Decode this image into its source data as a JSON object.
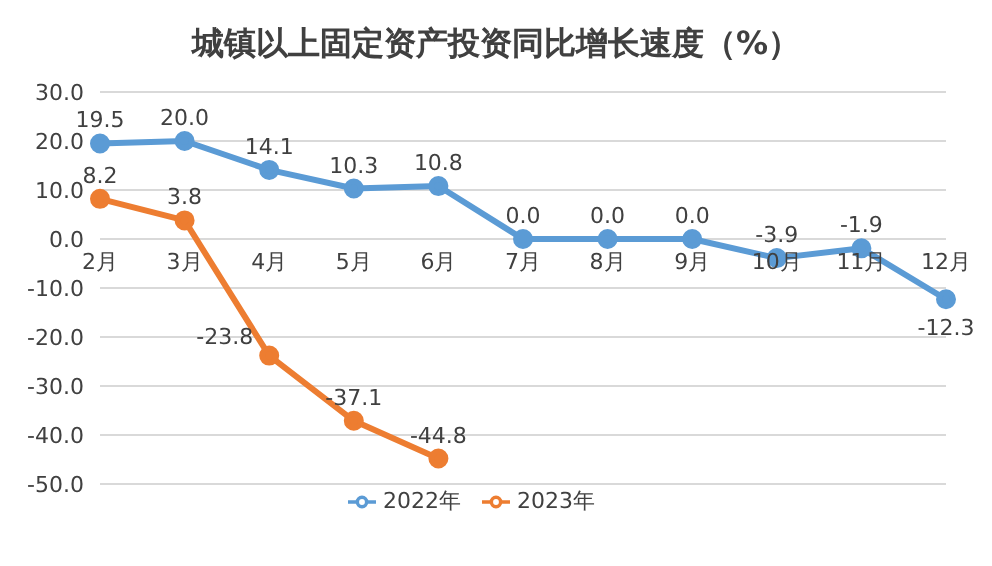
{
  "chart_data": {
    "type": "line",
    "title": "城镇以上固定资产投资同比增长速度（%）",
    "categories": [
      "2月",
      "3月",
      "4月",
      "5月",
      "6月",
      "7月",
      "8月",
      "9月",
      "10月",
      "11月",
      "12月"
    ],
    "series": [
      {
        "name": "2022年",
        "color": "#5b9bd5",
        "values": [
          19.5,
          20.0,
          14.1,
          10.3,
          10.8,
          0.0,
          0.0,
          0.0,
          -3.9,
          -1.9,
          -12.3
        ],
        "value_labels": [
          "19.5",
          "20.0",
          "14.1",
          "10.3",
          "10.8",
          "0.0",
          "0.0",
          "0.0",
          "-3.9",
          "-1.9",
          "-12.3"
        ]
      },
      {
        "name": "2023年",
        "color": "#ed7d31",
        "values": [
          8.2,
          3.8,
          -23.8,
          -37.1,
          -44.8,
          null,
          null,
          null,
          null,
          null,
          null
        ],
        "value_labels": [
          "8.2",
          "3.8",
          "-23.8",
          "-37.1",
          "-44.8",
          null,
          null,
          null,
          null,
          null,
          null
        ]
      }
    ],
    "ylim": [
      -50,
      30
    ],
    "yticks": [
      {
        "value": -50,
        "label": "-50.0"
      },
      {
        "value": -40,
        "label": "-40.0"
      },
      {
        "value": -30,
        "label": "-30.0"
      },
      {
        "value": -20,
        "label": "-20.0"
      },
      {
        "value": -10,
        "label": "-10.0"
      },
      {
        "value": 0,
        "label": "0.0"
      },
      {
        "value": 10,
        "label": "10.0"
      },
      {
        "value": 20,
        "label": "20.0"
      },
      {
        "value": 30,
        "label": "30.0"
      }
    ],
    "grid": "y",
    "legend": "bottom",
    "marker": "circle",
    "line_style": "solid"
  }
}
